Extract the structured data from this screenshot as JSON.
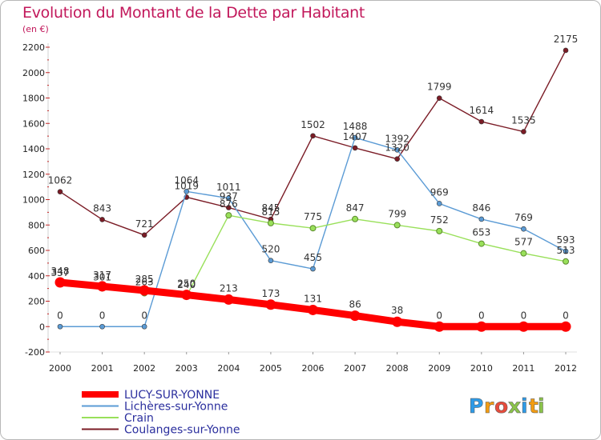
{
  "title": "Evolution du Montant de la Dette par Habitant",
  "subtitle": "(en €)",
  "logo": {
    "letters": [
      "P",
      "r",
      "o",
      "x",
      "i",
      "t",
      "i"
    ],
    "colors": [
      "#2e9be8",
      "#f39c12",
      "#e74c3c",
      "#8bc34a",
      "#2e9be8",
      "#f39c12",
      "#8bc34a"
    ]
  },
  "chart_data": {
    "type": "line",
    "title": "Evolution du Montant de la Dette par Habitant",
    "subtitle": "(en €)",
    "x": [
      "2000",
      "2001",
      "2002",
      "2003",
      "2004",
      "2005",
      "2006",
      "2007",
      "2008",
      "2009",
      "2010",
      "2011",
      "2012"
    ],
    "y_ticks": [
      -200,
      0,
      200,
      400,
      600,
      800,
      1000,
      1200,
      1400,
      1600,
      1800,
      2000,
      2200
    ],
    "ylim": [
      -200,
      2200
    ],
    "grid": false,
    "legend_position": "bottom-left",
    "series": [
      {
        "name": "Coulanges-sur-Yonne",
        "color": "#7b1c26",
        "values": [
          1062,
          843,
          721,
          1019,
          937,
          845,
          1502,
          1407,
          1320,
          1799,
          1614,
          1535,
          2175
        ]
      },
      {
        "name": "Lichères-sur-Yonne",
        "color": "#5b9bd5",
        "values": [
          0,
          0,
          0,
          1064,
          1011,
          520,
          455,
          1488,
          1392,
          969,
          846,
          769,
          593
        ]
      },
      {
        "name": "Crain",
        "color": "#99e05a",
        "values": [
          337,
          301,
          263,
          240,
          876,
          815,
          775,
          847,
          799,
          752,
          653,
          577,
          513
        ]
      },
      {
        "name": "LUCY-SUR-YONNE",
        "color": "#ff0000",
        "values": [
          348,
          317,
          285,
          250,
          213,
          173,
          131,
          86,
          38,
          0,
          0,
          0,
          0
        ]
      }
    ]
  }
}
